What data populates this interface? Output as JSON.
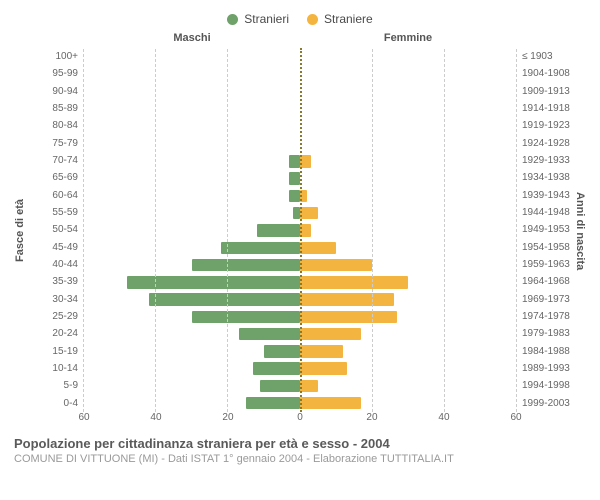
{
  "legend": {
    "male": {
      "label": "Stranieri",
      "color": "#6fa16a"
    },
    "female": {
      "label": "Straniere",
      "color": "#f4b440"
    }
  },
  "headers": {
    "male": "Maschi",
    "female": "Femmine"
  },
  "axes": {
    "left_title": "Fasce di età",
    "right_title": "Anni di nascita",
    "x_max": 60,
    "x_ticks": [
      60,
      40,
      20,
      0,
      20,
      40,
      60
    ],
    "grid_color": "#cccccc",
    "center_color": "#8a7a2b",
    "label_fontsize": 10,
    "title_fontsize": 11,
    "header_fontsize": 11
  },
  "chart": {
    "type": "population-pyramid",
    "background_color": "#ffffff",
    "bar_gap_pct": 28,
    "rows": [
      {
        "age": "100+",
        "birth": "≤ 1903",
        "m": 0,
        "f": 0
      },
      {
        "age": "95-99",
        "birth": "1904-1908",
        "m": 0,
        "f": 0
      },
      {
        "age": "90-94",
        "birth": "1909-1913",
        "m": 0,
        "f": 0
      },
      {
        "age": "85-89",
        "birth": "1914-1918",
        "m": 0,
        "f": 0
      },
      {
        "age": "80-84",
        "birth": "1919-1923",
        "m": 0,
        "f": 0
      },
      {
        "age": "75-79",
        "birth": "1924-1928",
        "m": 0,
        "f": 0
      },
      {
        "age": "70-74",
        "birth": "1929-1933",
        "m": 3,
        "f": 3
      },
      {
        "age": "65-69",
        "birth": "1934-1938",
        "m": 3,
        "f": 0
      },
      {
        "age": "60-64",
        "birth": "1939-1943",
        "m": 3,
        "f": 2
      },
      {
        "age": "55-59",
        "birth": "1944-1948",
        "m": 2,
        "f": 5
      },
      {
        "age": "50-54",
        "birth": "1949-1953",
        "m": 12,
        "f": 3
      },
      {
        "age": "45-49",
        "birth": "1954-1958",
        "m": 22,
        "f": 10
      },
      {
        "age": "40-44",
        "birth": "1959-1963",
        "m": 30,
        "f": 20
      },
      {
        "age": "35-39",
        "birth": "1964-1968",
        "m": 48,
        "f": 30
      },
      {
        "age": "30-34",
        "birth": "1969-1973",
        "m": 42,
        "f": 26
      },
      {
        "age": "25-29",
        "birth": "1974-1978",
        "m": 30,
        "f": 27
      },
      {
        "age": "20-24",
        "birth": "1979-1983",
        "m": 17,
        "f": 17
      },
      {
        "age": "15-19",
        "birth": "1984-1988",
        "m": 10,
        "f": 12
      },
      {
        "age": "10-14",
        "birth": "1989-1993",
        "m": 13,
        "f": 13
      },
      {
        "age": "5-9",
        "birth": "1994-1998",
        "m": 11,
        "f": 5
      },
      {
        "age": "0-4",
        "birth": "1999-2003",
        "m": 15,
        "f": 17
      }
    ]
  },
  "footer": {
    "title": "Popolazione per cittadinanza straniera per età e sesso - 2004",
    "subtitle": "COMUNE DI VITTUONE (MI) - Dati ISTAT 1° gennaio 2004 - Elaborazione TUTTITALIA.IT",
    "title_fontsize": 13,
    "subtitle_fontsize": 11,
    "title_color": "#5a5a5a",
    "subtitle_color": "#9a9a9a"
  }
}
